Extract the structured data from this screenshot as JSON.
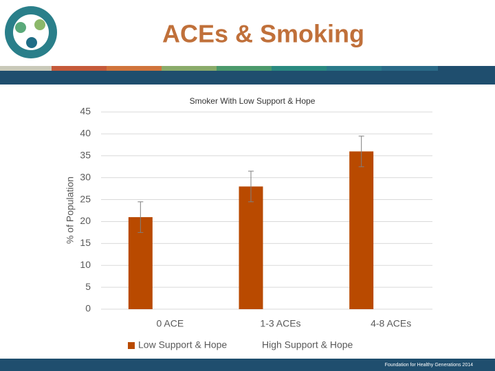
{
  "header": {
    "title": "ACEs & Smoking"
  },
  "footer": {
    "text": "Foundation for Healthy Generations 2014"
  },
  "chart_data": {
    "type": "bar",
    "title": "Smoker With Low Support & Hope",
    "ylabel": "% of Population",
    "categories": [
      "0 ACE",
      "1-3 ACEs",
      "4-8 ACEs"
    ],
    "series": [
      {
        "name": "Low Support & Hope",
        "color": "#b94a00",
        "values": [
          21,
          28,
          36
        ],
        "errors": [
          3.5,
          3.5,
          3.5
        ]
      },
      {
        "name": "High Support & Hope",
        "color": "#ffffff",
        "values": [
          null,
          null,
          null
        ]
      }
    ],
    "ylim": [
      0,
      45
    ],
    "yticks": [
      0,
      5,
      10,
      15,
      20,
      25,
      30,
      35,
      40,
      45
    ],
    "grid": true,
    "legend": "bottom"
  }
}
